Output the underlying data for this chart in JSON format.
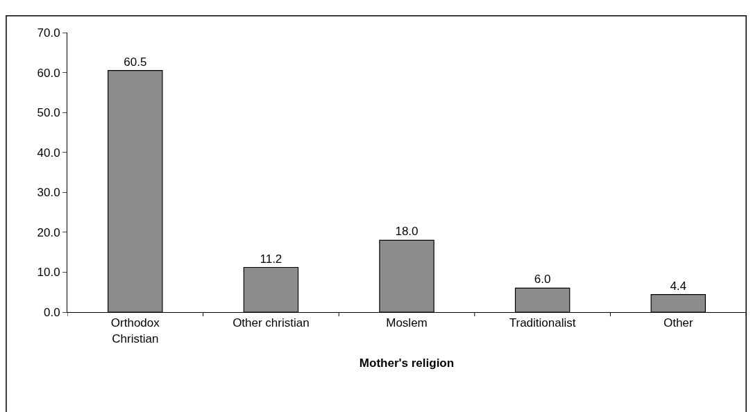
{
  "chart_data": {
    "type": "bar",
    "xlabel": "Mother's religion",
    "categories": [
      "Orthodox\nChristian",
      "Other christian",
      "Moslem",
      "Traditionalist",
      "Other"
    ],
    "values": [
      60.5,
      11.2,
      18.0,
      6.0,
      4.4
    ],
    "value_labels": [
      "60.5",
      "11.2",
      "18.0",
      "6.0",
      "4.4"
    ],
    "color": "#8c8c8c",
    "ylim": [
      0,
      70
    ],
    "yticks": [
      {
        "value": 0,
        "label": "0.0"
      },
      {
        "value": 10,
        "label": "10.0"
      },
      {
        "value": 20,
        "label": "20.0"
      },
      {
        "value": 30,
        "label": "30.0"
      },
      {
        "value": 40,
        "label": "40.0"
      },
      {
        "value": 50,
        "label": "50.0"
      },
      {
        "value": 60,
        "label": "60.0"
      },
      {
        "value": 70,
        "label": "70.0"
      }
    ],
    "grid": false,
    "legend": false
  }
}
